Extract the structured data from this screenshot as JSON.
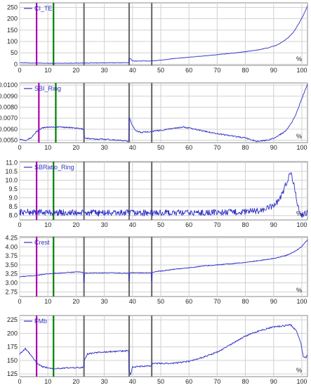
{
  "chart_data": [
    {
      "type": "line",
      "series": [
        {
          "name": "CI_TE",
          "color": "#3030c8"
        }
      ],
      "x_ticks": [
        0,
        10,
        20,
        30,
        40,
        50,
        60,
        70,
        80,
        90,
        100
      ],
      "y_ticks": [
        0,
        50,
        100,
        150,
        200,
        250
      ],
      "ylim": [
        -5,
        270
      ],
      "xlim": [
        0,
        102
      ],
      "x_unit": "%",
      "grid": true,
      "cursors": [
        {
          "x": 6.0,
          "color": "#b000b0"
        },
        {
          "x": 12.0,
          "color": "#008000"
        },
        {
          "x": 22.8,
          "color": "#707070"
        },
        {
          "x": 38.8,
          "color": "#707070"
        },
        {
          "x": 46.8,
          "color": "#707070"
        }
      ],
      "trace": [
        [
          0,
          7
        ],
        [
          5,
          5
        ],
        [
          10,
          4
        ],
        [
          15,
          4.5
        ],
        [
          20,
          5
        ],
        [
          25,
          5.5
        ],
        [
          30,
          6
        ],
        [
          35,
          6.5
        ],
        [
          38.7,
          7
        ],
        [
          38.8,
          25
        ],
        [
          39.5,
          22
        ],
        [
          40,
          14
        ],
        [
          45,
          14
        ],
        [
          47,
          15
        ],
        [
          50,
          18
        ],
        [
          55,
          25
        ],
        [
          60,
          31
        ],
        [
          65,
          36
        ],
        [
          70,
          42
        ],
        [
          75,
          48
        ],
        [
          80,
          55
        ],
        [
          85,
          64
        ],
        [
          88,
          72
        ],
        [
          91,
          83
        ],
        [
          93,
          97
        ],
        [
          95,
          115
        ],
        [
          97,
          140
        ],
        [
          99,
          180
        ],
        [
          100.5,
          215
        ],
        [
          102,
          255
        ]
      ],
      "noise": 1.2
    },
    {
      "type": "line",
      "series": [
        {
          "name": "SBI_Ring",
          "color": "#3030c8"
        }
      ],
      "x_ticks": [
        0,
        10,
        20,
        30,
        40,
        50,
        60,
        70,
        80,
        90,
        100
      ],
      "y_ticks": [
        "0.0050",
        "0.0060",
        "0.0070",
        "0.0080",
        "0.0090",
        "0.0100"
      ],
      "y_tick_values": [
        0.005,
        0.006,
        0.007,
        0.008,
        0.009,
        0.01
      ],
      "ylim": [
        0.00478,
        0.0102
      ],
      "xlim": [
        0,
        102
      ],
      "x_unit": "%",
      "grid": true,
      "cursors": [
        {
          "x": 6.8,
          "color": "#b000b0"
        },
        {
          "x": 12.8,
          "color": "#008000"
        },
        {
          "x": 22.8,
          "color": "#707070"
        },
        {
          "x": 38.8,
          "color": "#707070"
        },
        {
          "x": 46.8,
          "color": "#707070"
        }
      ],
      "trace": [
        [
          0,
          0.0051
        ],
        [
          2,
          0.005
        ],
        [
          4,
          0.0052
        ],
        [
          6,
          0.0058
        ],
        [
          8,
          0.0061
        ],
        [
          10,
          0.0062
        ],
        [
          15,
          0.0062
        ],
        [
          20,
          0.0061
        ],
        [
          22.7,
          0.006
        ],
        [
          23,
          0.0052
        ],
        [
          26,
          0.0051
        ],
        [
          30,
          0.0051
        ],
        [
          35,
          0.005
        ],
        [
          38.7,
          0.0049
        ],
        [
          38.8,
          0.0071
        ],
        [
          39.5,
          0.0066
        ],
        [
          41,
          0.0059
        ],
        [
          43,
          0.0057
        ],
        [
          46.8,
          0.0058
        ],
        [
          50,
          0.0059
        ],
        [
          55,
          0.0061
        ],
        [
          58,
          0.0062
        ],
        [
          62,
          0.006
        ],
        [
          66,
          0.0058
        ],
        [
          70,
          0.0056
        ],
        [
          75,
          0.0054
        ],
        [
          80,
          0.0052
        ],
        [
          84,
          0.0049
        ],
        [
          88,
          0.005
        ],
        [
          91,
          0.0053
        ],
        [
          94,
          0.0058
        ],
        [
          96,
          0.0064
        ],
        [
          98,
          0.0074
        ],
        [
          100,
          0.0088
        ],
        [
          102,
          0.0101
        ]
      ],
      "noise": 6e-05
    },
    {
      "type": "line",
      "series": [
        {
          "name": "SBRatio_Ring",
          "color": "#3030c8"
        }
      ],
      "x_ticks": [
        0,
        10,
        20,
        30,
        40,
        50,
        60,
        70,
        80,
        90,
        100
      ],
      "y_ticks": [
        "8.0",
        "8.5",
        "9.0",
        "9.5",
        "10.0",
        "10.5",
        "11.0"
      ],
      "y_tick_values": [
        8.0,
        8.5,
        9.0,
        9.5,
        10.0,
        10.5,
        11.0
      ],
      "ylim": [
        7.75,
        11.05
      ],
      "xlim": [
        0,
        102
      ],
      "x_unit": "%",
      "grid": true,
      "cursors": [
        {
          "x": 6.0,
          "color": "#b000b0"
        },
        {
          "x": 12.0,
          "color": "#008000"
        },
        {
          "x": 22.8,
          "color": "#707070"
        },
        {
          "x": 38.8,
          "color": "#707070"
        },
        {
          "x": 46.8,
          "color": "#707070"
        }
      ],
      "trace": [
        [
          0,
          8.2
        ],
        [
          20,
          8.15
        ],
        [
          40,
          8.15
        ],
        [
          60,
          8.15
        ],
        [
          80,
          8.2
        ],
        [
          86,
          8.3
        ],
        [
          90,
          8.55
        ],
        [
          92,
          8.9
        ],
        [
          94,
          9.6
        ],
        [
          95.5,
          10.3
        ],
        [
          96.3,
          10.35
        ],
        [
          97,
          9.9
        ],
        [
          98,
          9.0
        ],
        [
          99,
          8.3
        ],
        [
          100,
          8.0
        ],
        [
          102,
          8.2
        ]
      ],
      "noise": 0.18
    },
    {
      "type": "line",
      "series": [
        {
          "name": "Crest",
          "color": "#3030c8"
        }
      ],
      "x_ticks": [
        0,
        10,
        20,
        30,
        40,
        50,
        60,
        70,
        80,
        90,
        100
      ],
      "y_ticks": [
        "2.75",
        "3.00",
        "3.25",
        "3.50",
        "3.75",
        "4.00",
        "4.25"
      ],
      "y_tick_values": [
        2.75,
        3.0,
        3.25,
        3.5,
        3.75,
        4.0,
        4.25
      ],
      "ylim": [
        2.62,
        4.28
      ],
      "xlim": [
        0,
        102
      ],
      "x_unit": "%",
      "grid": true,
      "cursors": [
        {
          "x": 6.0,
          "color": "#b000b0"
        },
        {
          "x": 12.0,
          "color": "#008000"
        },
        {
          "x": 22.8,
          "color": "#707070"
        },
        {
          "x": 38.8,
          "color": "#707070"
        },
        {
          "x": 46.8,
          "color": "#707070"
        }
      ],
      "trace": [
        [
          0,
          3.17
        ],
        [
          5,
          3.2
        ],
        [
          10,
          3.25
        ],
        [
          15,
          3.28
        ],
        [
          20,
          3.3
        ],
        [
          22.6,
          3.3
        ],
        [
          22.8,
          3.0
        ],
        [
          23,
          3.27
        ],
        [
          30,
          3.28
        ],
        [
          38.6,
          3.27
        ],
        [
          38.8,
          3.05
        ],
        [
          39,
          3.28
        ],
        [
          46.6,
          3.28
        ],
        [
          46.8,
          3.05
        ],
        [
          47,
          3.3
        ],
        [
          55,
          3.38
        ],
        [
          60,
          3.42
        ],
        [
          65,
          3.47
        ],
        [
          70,
          3.5
        ],
        [
          75,
          3.53
        ],
        [
          80,
          3.57
        ],
        [
          85,
          3.62
        ],
        [
          90,
          3.68
        ],
        [
          94,
          3.75
        ],
        [
          97,
          3.85
        ],
        [
          99.5,
          3.98
        ],
        [
          101,
          4.1
        ],
        [
          102,
          4.2
        ]
      ],
      "noise": 0.012
    },
    {
      "type": "line",
      "series": [
        {
          "name": "FMb",
          "color": "#3030c8"
        }
      ],
      "x_ticks": [
        0,
        10,
        20,
        30,
        40,
        50,
        60,
        70,
        80,
        90,
        100
      ],
      "y_ticks": [
        125,
        150,
        175,
        200,
        225
      ],
      "ylim": [
        120,
        233
      ],
      "xlim": [
        0,
        102
      ],
      "x_unit": "%",
      "grid": true,
      "cursors": [
        {
          "x": 6.0,
          "color": "#b000b0"
        },
        {
          "x": 12.0,
          "color": "#008000"
        },
        {
          "x": 22.8,
          "color": "#707070"
        },
        {
          "x": 38.8,
          "color": "#707070"
        },
        {
          "x": 46.8,
          "color": "#707070"
        }
      ],
      "trace": [
        [
          0,
          162
        ],
        [
          2,
          172
        ],
        [
          4,
          160
        ],
        [
          6,
          145
        ],
        [
          8,
          138
        ],
        [
          12,
          135
        ],
        [
          17,
          136
        ],
        [
          22.7,
          137
        ],
        [
          22.9,
          150
        ],
        [
          24,
          162
        ],
        [
          28,
          165
        ],
        [
          32,
          166
        ],
        [
          38.6,
          168
        ],
        [
          38.8,
          132
        ],
        [
          39.3,
          123
        ],
        [
          40,
          138
        ],
        [
          46.7,
          140
        ],
        [
          47,
          144
        ],
        [
          55,
          145
        ],
        [
          60,
          148
        ],
        [
          65,
          156
        ],
        [
          70,
          165
        ],
        [
          75,
          180
        ],
        [
          80,
          195
        ],
        [
          85,
          205
        ],
        [
          90,
          212
        ],
        [
          94,
          214
        ],
        [
          96,
          216
        ],
        [
          98,
          205
        ],
        [
          99.5,
          185
        ],
        [
          100.5,
          158
        ],
        [
          101.5,
          155
        ],
        [
          102,
          160
        ]
      ],
      "noise": 1.4
    }
  ]
}
